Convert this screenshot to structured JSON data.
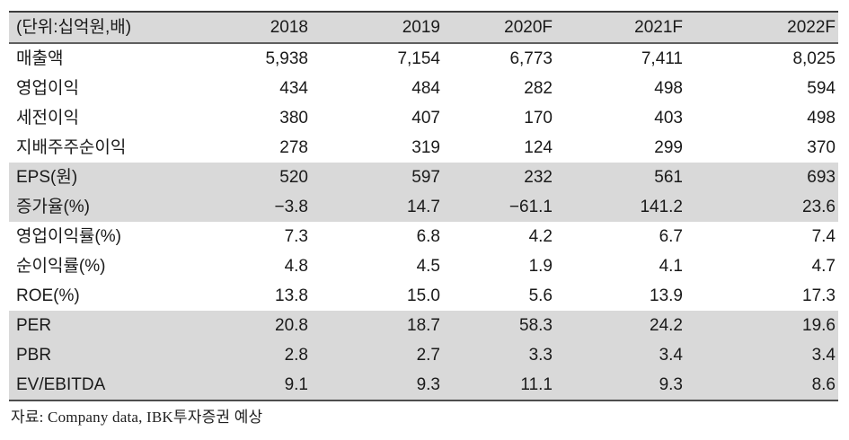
{
  "table": {
    "unit_label": "(단위:십억원,배)",
    "columns": [
      "2018",
      "2019",
      "2020F",
      "2021F",
      "2022F"
    ],
    "rows": [
      {
        "label": "매출액",
        "values": [
          "5,938",
          "7,154",
          "6,773",
          "7,411",
          "8,025"
        ],
        "highlight": false
      },
      {
        "label": "영업이익",
        "values": [
          "434",
          "484",
          "282",
          "498",
          "594"
        ],
        "highlight": false
      },
      {
        "label": "세전이익",
        "values": [
          "380",
          "407",
          "170",
          "403",
          "498"
        ],
        "highlight": false
      },
      {
        "label": "지배주주순이익",
        "values": [
          "278",
          "319",
          "124",
          "299",
          "370"
        ],
        "highlight": false
      },
      {
        "label": "EPS(원)",
        "values": [
          "520",
          "597",
          "232",
          "561",
          "693"
        ],
        "highlight": true
      },
      {
        "label": "증가율(%)",
        "values": [
          "−3.8",
          "14.7",
          "−61.1",
          "141.2",
          "23.6"
        ],
        "highlight": true
      },
      {
        "label": "영업이익률(%)",
        "values": [
          "7.3",
          "6.8",
          "4.2",
          "6.7",
          "7.4"
        ],
        "highlight": false
      },
      {
        "label": "순이익률(%)",
        "values": [
          "4.8",
          "4.5",
          "1.9",
          "4.1",
          "4.7"
        ],
        "highlight": false
      },
      {
        "label": "ROE(%)",
        "values": [
          "13.8",
          "15.0",
          "5.6",
          "13.9",
          "17.3"
        ],
        "highlight": false
      },
      {
        "label": "PER",
        "values": [
          "20.8",
          "18.7",
          "58.3",
          "24.2",
          "19.6"
        ],
        "highlight": true
      },
      {
        "label": "PBR",
        "values": [
          "2.8",
          "2.7",
          "3.3",
          "3.4",
          "3.4"
        ],
        "highlight": true
      },
      {
        "label": "EV/EBITDA",
        "values": [
          "9.1",
          "9.3",
          "11.1",
          "9.3",
          "8.6"
        ],
        "highlight": true
      }
    ]
  },
  "footer": {
    "source": "자료: Company data, IBK투자증권 예상"
  },
  "colors": {
    "band_gray": "#d9d9d9",
    "border_top": "#3c3c3c",
    "border_header": "#5f5f5f",
    "border_bottom": "#4e4e4e",
    "text": "#1a1a1a"
  },
  "chart_data": {
    "type": "table",
    "title": "",
    "unit": "(단위:십억원,배)",
    "columns": [
      "2018",
      "2019",
      "2020F",
      "2021F",
      "2022F"
    ],
    "series": [
      {
        "name": "매출액",
        "values": [
          5938,
          7154,
          6773,
          7411,
          8025
        ]
      },
      {
        "name": "영업이익",
        "values": [
          434,
          484,
          282,
          498,
          594
        ]
      },
      {
        "name": "세전이익",
        "values": [
          380,
          407,
          170,
          403,
          498
        ]
      },
      {
        "name": "지배주주순이익",
        "values": [
          278,
          319,
          124,
          299,
          370
        ]
      },
      {
        "name": "EPS(원)",
        "values": [
          520,
          597,
          232,
          561,
          693
        ]
      },
      {
        "name": "증가율(%)",
        "values": [
          -3.8,
          14.7,
          -61.1,
          141.2,
          23.6
        ]
      },
      {
        "name": "영업이익률(%)",
        "values": [
          7.3,
          6.8,
          4.2,
          6.7,
          7.4
        ]
      },
      {
        "name": "순이익률(%)",
        "values": [
          4.8,
          4.5,
          1.9,
          4.1,
          4.7
        ]
      },
      {
        "name": "ROE(%)",
        "values": [
          13.8,
          15.0,
          5.6,
          13.9,
          17.3
        ]
      },
      {
        "name": "PER",
        "values": [
          20.8,
          18.7,
          58.3,
          24.2,
          19.6
        ]
      },
      {
        "name": "PBR",
        "values": [
          2.8,
          2.7,
          3.3,
          3.4,
          3.4
        ]
      },
      {
        "name": "EV/EBITDA",
        "values": [
          9.1,
          9.3,
          11.1,
          9.3,
          8.6
        ]
      }
    ],
    "source_note": "자료: Company data, IBK투자증권 예상"
  }
}
